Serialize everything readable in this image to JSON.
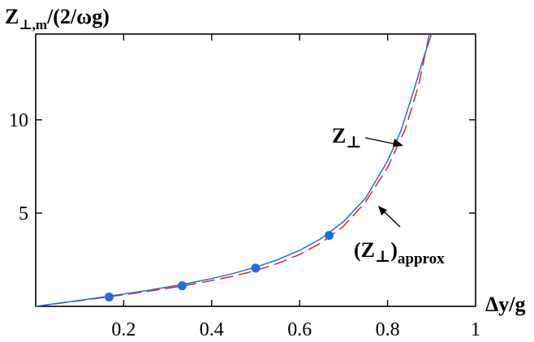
{
  "chart_data": {
    "type": "line",
    "title": "",
    "ylabel": {
      "main": "Z",
      "sub": "⊥,m",
      "rest": "/(2/ωg)"
    },
    "xlabel": "Δy/g",
    "xlim": [
      0,
      1
    ],
    "ylim": [
      0,
      14.6
    ],
    "x_ticks": [
      {
        "value": 0.2,
        "label": "0.2"
      },
      {
        "value": 0.4,
        "label": "0.4"
      },
      {
        "value": 0.6,
        "label": "0.6"
      },
      {
        "value": 0.8,
        "label": "0.8"
      },
      {
        "value": 1.0,
        "label": "1"
      }
    ],
    "y_ticks": [
      {
        "value": 5,
        "label": "5"
      },
      {
        "value": 10,
        "label": "10"
      }
    ],
    "grid": false,
    "series": [
      {
        "name": "Z⊥",
        "style": "solid",
        "color": "#1f6fe0",
        "x": [
          0.0,
          0.05,
          0.1,
          0.15,
          0.2,
          0.25,
          0.3,
          0.35,
          0.4,
          0.45,
          0.5,
          0.55,
          0.6,
          0.65,
          0.7,
          0.75,
          0.8,
          0.83,
          0.86,
          0.88,
          0.9
        ],
        "y": [
          0.0,
          0.16,
          0.32,
          0.49,
          0.66,
          0.84,
          1.04,
          1.25,
          1.49,
          1.77,
          2.1,
          2.5,
          3.0,
          3.65,
          4.55,
          5.8,
          7.8,
          9.4,
          11.6,
          13.2,
          14.6
        ]
      },
      {
        "name": "(Z⊥)approx",
        "style": "dashed",
        "color": "#d9232a",
        "x": [
          0.0,
          0.05,
          0.1,
          0.15,
          0.2,
          0.25,
          0.3,
          0.35,
          0.4,
          0.45,
          0.5,
          0.55,
          0.6,
          0.65,
          0.7,
          0.75,
          0.8,
          0.84,
          0.87,
          0.895
        ],
        "y": [
          0.0,
          0.15,
          0.3,
          0.46,
          0.62,
          0.79,
          0.97,
          1.16,
          1.38,
          1.62,
          1.92,
          2.3,
          2.78,
          3.42,
          4.3,
          5.6,
          7.45,
          9.5,
          11.8,
          14.6
        ]
      }
    ],
    "markers": [
      {
        "x": 0.167,
        "y": 0.5
      },
      {
        "x": 0.333,
        "y": 1.1
      },
      {
        "x": 0.5,
        "y": 2.05
      },
      {
        "x": 0.667,
        "y": 3.8
      }
    ],
    "marker_color": "#1f6fe0",
    "annotations": [
      {
        "main": "Z",
        "sub": "⊥",
        "wrap": false,
        "points_to": {
          "x": 0.84,
          "y": 8.9
        }
      },
      {
        "main": "Z",
        "sub": "⊥",
        "wrap": true,
        "suffix": "approx",
        "points_to": {
          "x": 0.775,
          "y": 5.3
        }
      }
    ]
  }
}
